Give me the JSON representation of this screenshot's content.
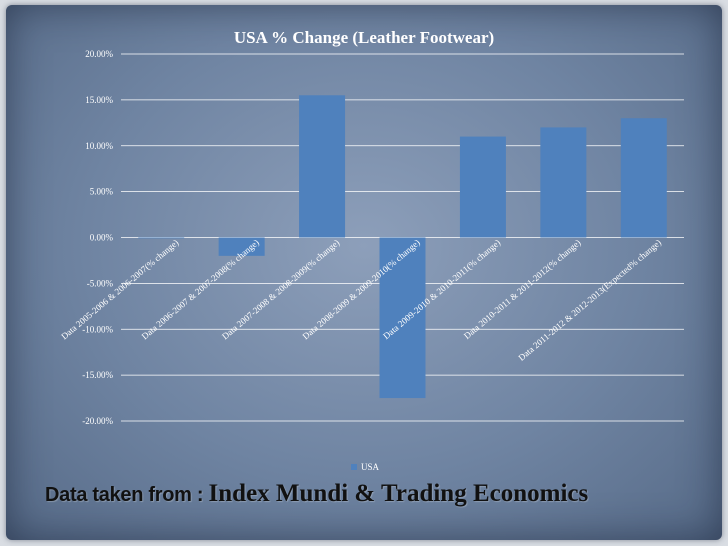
{
  "chart_data": {
    "type": "bar",
    "title": "USA % Change (Leather Footwear)",
    "categories": [
      "Data 2005-2006 & 2006-2007(% change)",
      "Data 2006-2007 & 2007-2008(% change)",
      "Data 2007-2008 & 2008-2009(% change)",
      "Data 2008-2009 & 2009-2010(% change)",
      "Data 2009-2010 & 2010-2011(% change)",
      "Data 2010-2011 & 2011-2012(% change)",
      "Data 2011-2012 & 2012-2013(Expected% change)"
    ],
    "series": [
      {
        "name": "USA",
        "values": [
          0.0,
          -2.0,
          15.5,
          -17.5,
          11.0,
          12.0,
          13.0
        ]
      }
    ],
    "yticks": [
      "20.00%",
      "15.00%",
      "10.00%",
      "5.00%",
      "0.00%",
      "-5.00%",
      "-10.00%",
      "-15.00%",
      "-20.00%"
    ],
    "ylim": [
      -20,
      20
    ],
    "grid": true,
    "legend_position": "bottom",
    "bar_color": "#4f81bd"
  },
  "legend": {
    "label": "USA"
  },
  "source": {
    "prefix": "Data taken from : ",
    "names": "Index Mundi & Trading Economics"
  }
}
